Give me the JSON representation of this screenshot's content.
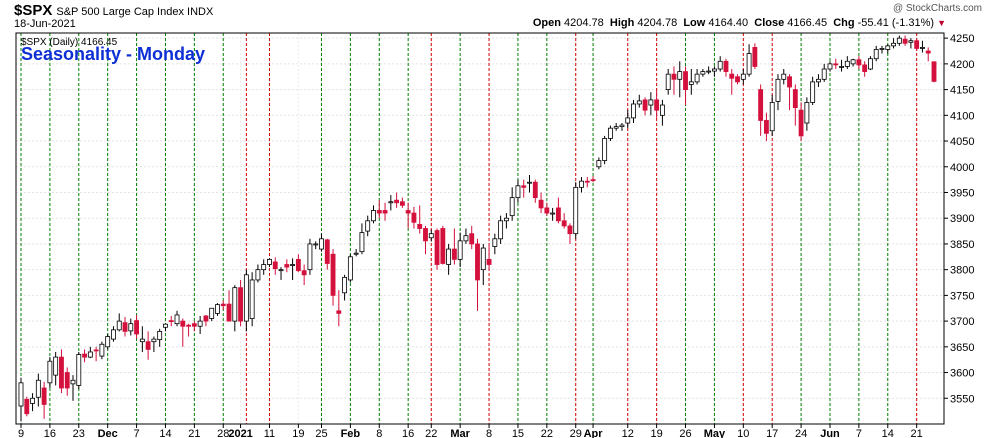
{
  "header": {
    "symbol": "$SPX",
    "name": "S&P 500 Large Cap Index",
    "exchange": "INDX",
    "date": "18-Jun-2021",
    "watermark": "@ StockCharts.com",
    "open_label": "Open",
    "open": "4204.78",
    "high_label": "High",
    "high": "4204.78",
    "low_label": "Low",
    "low": "4164.40",
    "close_label": "Close",
    "close": "4166.45",
    "chg_label": "Chg",
    "chg": "-55.41 (-1.31%)"
  },
  "chart_data": {
    "type": "candlestick",
    "title": "Seasonality - Monday",
    "series_label": "$SPX (Daily) 4166.45",
    "ylim": [
      3500,
      4260
    ],
    "y_ticks": [
      3550,
      3600,
      3650,
      3700,
      3750,
      3800,
      3850,
      3900,
      3950,
      4000,
      4050,
      4100,
      4150,
      4200,
      4250
    ],
    "x_ticks": [
      {
        "label": "9",
        "i": 0,
        "bold": false
      },
      {
        "label": "16",
        "i": 5,
        "bold": false
      },
      {
        "label": "23",
        "i": 10,
        "bold": false
      },
      {
        "label": "Dec",
        "i": 15,
        "bold": true
      },
      {
        "label": "7",
        "i": 20,
        "bold": false
      },
      {
        "label": "14",
        "i": 25,
        "bold": false
      },
      {
        "label": "21",
        "i": 30,
        "bold": false
      },
      {
        "label": "28",
        "i": 35,
        "bold": false
      },
      {
        "label": "2021",
        "i": 38,
        "bold": true
      },
      {
        "label": "11",
        "i": 43,
        "bold": false
      },
      {
        "label": "19",
        "i": 48,
        "bold": false
      },
      {
        "label": "25",
        "i": 52,
        "bold": false
      },
      {
        "label": "Feb",
        "i": 57,
        "bold": true
      },
      {
        "label": "8",
        "i": 62,
        "bold": false
      },
      {
        "label": "16",
        "i": 67,
        "bold": false
      },
      {
        "label": "22",
        "i": 71,
        "bold": false
      },
      {
        "label": "Mar",
        "i": 76,
        "bold": true
      },
      {
        "label": "8",
        "i": 81,
        "bold": false
      },
      {
        "label": "15",
        "i": 86,
        "bold": false
      },
      {
        "label": "22",
        "i": 91,
        "bold": false
      },
      {
        "label": "29",
        "i": 96,
        "bold": false
      },
      {
        "label": "Apr",
        "i": 99,
        "bold": true
      },
      {
        "label": "12",
        "i": 105,
        "bold": false
      },
      {
        "label": "19",
        "i": 110,
        "bold": false
      },
      {
        "label": "26",
        "i": 115,
        "bold": false
      },
      {
        "label": "May",
        "i": 120,
        "bold": true
      },
      {
        "label": "10",
        "i": 125,
        "bold": false
      },
      {
        "label": "17",
        "i": 130,
        "bold": false
      },
      {
        "label": "24",
        "i": 135,
        "bold": false
      },
      {
        "label": "Jun",
        "i": 140,
        "bold": true
      },
      {
        "label": "7",
        "i": 145,
        "bold": false
      },
      {
        "label": "14",
        "i": 150,
        "bold": false
      },
      {
        "label": "21",
        "i": 155,
        "bold": false
      }
    ],
    "monday_marker_colors": {
      "up": "#008000",
      "down": "#d40000"
    },
    "monday_markers": [
      {
        "i": 0,
        "dir": "up"
      },
      {
        "i": 5,
        "dir": "up"
      },
      {
        "i": 10,
        "dir": "up"
      },
      {
        "i": 15,
        "dir": "up"
      },
      {
        "i": 20,
        "dir": "up"
      },
      {
        "i": 25,
        "dir": "up"
      },
      {
        "i": 30,
        "dir": "up"
      },
      {
        "i": 35,
        "dir": "up"
      },
      {
        "i": 39,
        "dir": "down"
      },
      {
        "i": 43,
        "dir": "down"
      },
      {
        "i": 52,
        "dir": "up"
      },
      {
        "i": 57,
        "dir": "up"
      },
      {
        "i": 62,
        "dir": "up"
      },
      {
        "i": 67,
        "dir": "up"
      },
      {
        "i": 71,
        "dir": "down"
      },
      {
        "i": 76,
        "dir": "up"
      },
      {
        "i": 81,
        "dir": "down"
      },
      {
        "i": 86,
        "dir": "up"
      },
      {
        "i": 91,
        "dir": "up"
      },
      {
        "i": 96,
        "dir": "down"
      },
      {
        "i": 99,
        "dir": "up"
      },
      {
        "i": 105,
        "dir": "down"
      },
      {
        "i": 110,
        "dir": "down"
      },
      {
        "i": 115,
        "dir": "up"
      },
      {
        "i": 120,
        "dir": "up"
      },
      {
        "i": 125,
        "dir": "down"
      },
      {
        "i": 130,
        "dir": "down"
      },
      {
        "i": 135,
        "dir": "up"
      },
      {
        "i": 140,
        "dir": "up"
      },
      {
        "i": 145,
        "dir": "up"
      },
      {
        "i": 150,
        "dir": "up"
      },
      {
        "i": 155,
        "dir": "down"
      }
    ],
    "candle_colors": {
      "up_fill": "#ffffff",
      "up_stroke": "#000000",
      "down": "#d4103c",
      "bull_solid": "#000000"
    },
    "candles": [
      [
        3535,
        3590,
        3505,
        3580
      ],
      [
        3548,
        3553,
        3515,
        3520
      ],
      [
        3540,
        3560,
        3525,
        3550
      ],
      [
        3552,
        3598,
        3534,
        3585
      ],
      [
        3570,
        3582,
        3510,
        3538
      ],
      [
        3580,
        3630,
        3570,
        3622
      ],
      [
        3595,
        3640,
        3575,
        3630
      ],
      [
        3630,
        3645,
        3560,
        3570
      ],
      [
        3600,
        3610,
        3555,
        3570
      ],
      [
        3578,
        3595,
        3545,
        3585
      ],
      [
        3575,
        3640,
        3568,
        3635
      ],
      [
        3636,
        3645,
        3620,
        3630
      ],
      [
        3630,
        3650,
        3628,
        3640
      ],
      [
        3644,
        3650,
        3622,
        3642
      ],
      [
        3632,
        3660,
        3626,
        3655
      ],
      [
        3650,
        3675,
        3645,
        3670
      ],
      [
        3665,
        3690,
        3660,
        3683
      ],
      [
        3683,
        3715,
        3680,
        3700
      ],
      [
        3697,
        3708,
        3670,
        3680
      ],
      [
        3681,
        3705,
        3672,
        3695
      ],
      [
        3701,
        3712,
        3666,
        3675
      ],
      [
        3660,
        3690,
        3640,
        3665
      ],
      [
        3660,
        3680,
        3625,
        3645
      ],
      [
        3660,
        3670,
        3640,
        3665
      ],
      [
        3664,
        3685,
        3650,
        3680
      ],
      [
        3688,
        3695,
        3680,
        3694
      ],
      [
        3701,
        3710,
        3690,
        3700
      ],
      [
        3695,
        3720,
        3690,
        3712
      ],
      [
        3700,
        3705,
        3650,
        3690
      ],
      [
        3692,
        3695,
        3670,
        3690
      ],
      [
        3695,
        3700,
        3680,
        3690
      ],
      [
        3690,
        3710,
        3675,
        3700
      ],
      [
        3710,
        3712,
        3690,
        3700
      ],
      [
        3705,
        3720,
        3700,
        3725
      ],
      [
        3715,
        3735,
        3710,
        3732
      ],
      [
        3733,
        3740,
        3722,
        3730
      ],
      [
        3733,
        3760,
        3700,
        3700
      ],
      [
        3700,
        3770,
        3680,
        3765
      ],
      [
        3765,
        3780,
        3690,
        3700
      ],
      [
        3700,
        3800,
        3680,
        3790
      ],
      [
        3705,
        3795,
        3690,
        3780
      ],
      [
        3780,
        3810,
        3775,
        3800
      ],
      [
        3800,
        3820,
        3790,
        3810
      ],
      [
        3810,
        3822,
        3805,
        3820
      ],
      [
        3815,
        3824,
        3790,
        3802
      ],
      [
        3800,
        3805,
        3780,
        3800
      ],
      [
        3810,
        3820,
        3795,
        3805
      ],
      [
        3810,
        3822,
        3780,
        3810
      ],
      [
        3820,
        3830,
        3795,
        3798
      ],
      [
        3798,
        3810,
        3770,
        3790
      ],
      [
        3800,
        3860,
        3790,
        3850
      ],
      [
        3850,
        3855,
        3840,
        3850
      ],
      [
        3840,
        3870,
        3835,
        3860
      ],
      [
        3858,
        3860,
        3800,
        3812
      ],
      [
        3830,
        3840,
        3730,
        3750
      ],
      [
        3720,
        3760,
        3690,
        3715
      ],
      [
        3755,
        3790,
        3740,
        3785
      ],
      [
        3780,
        3830,
        3775,
        3825
      ],
      [
        3832,
        3840,
        3826,
        3832
      ],
      [
        3835,
        3890,
        3830,
        3872
      ],
      [
        3875,
        3905,
        3865,
        3895
      ],
      [
        3895,
        3925,
        3890,
        3915
      ],
      [
        3915,
        3935,
        3900,
        3910
      ],
      [
        3915,
        3930,
        3895,
        3910
      ],
      [
        3930,
        3945,
        3915,
        3932
      ],
      [
        3935,
        3950,
        3920,
        3930
      ],
      [
        3932,
        3940,
        3920,
        3925
      ],
      [
        3915,
        3930,
        3880,
        3910
      ],
      [
        3910,
        3922,
        3880,
        3892
      ],
      [
        3888,
        3925,
        3870,
        3880
      ],
      [
        3880,
        3885,
        3830,
        3856
      ],
      [
        3862,
        3878,
        3855,
        3870
      ],
      [
        3876,
        3880,
        3800,
        3810
      ],
      [
        3880,
        3885,
        3810,
        3812
      ],
      [
        3810,
        3850,
        3790,
        3840
      ],
      [
        3840,
        3880,
        3810,
        3820
      ],
      [
        3820,
        3872,
        3805,
        3856
      ],
      [
        3856,
        3880,
        3850,
        3866
      ],
      [
        3870,
        3885,
        3840,
        3850
      ],
      [
        3850,
        3860,
        3720,
        3780
      ],
      [
        3800,
        3850,
        3770,
        3842
      ],
      [
        3820,
        3852,
        3800,
        3810
      ],
      [
        3845,
        3870,
        3830,
        3860
      ],
      [
        3860,
        3905,
        3850,
        3895
      ],
      [
        3895,
        3910,
        3880,
        3900
      ],
      [
        3905,
        3960,
        3895,
        3940
      ],
      [
        3940,
        3975,
        3930,
        3963
      ],
      [
        3963,
        3975,
        3940,
        3960
      ],
      [
        3970,
        3984,
        3950,
        3970
      ],
      [
        3970,
        3975,
        3930,
        3940
      ],
      [
        3935,
        3950,
        3910,
        3920
      ],
      [
        3920,
        3930,
        3905,
        3910
      ],
      [
        3910,
        3920,
        3895,
        3910
      ],
      [
        3920,
        3940,
        3890,
        3895
      ],
      [
        3895,
        3910,
        3880,
        3885
      ],
      [
        3885,
        3890,
        3850,
        3870
      ],
      [
        3870,
        3970,
        3860,
        3960
      ],
      [
        3960,
        3980,
        3950,
        3972
      ],
      [
        3972,
        3980,
        3960,
        3970
      ],
      [
        3975,
        3982,
        3970,
        3974
      ],
      [
        4000,
        4018,
        3995,
        4012
      ],
      [
        4012,
        4060,
        4005,
        4055
      ],
      [
        4055,
        4080,
        4050,
        4075
      ],
      [
        4075,
        4085,
        4070,
        4078
      ],
      [
        4078,
        4085,
        4070,
        4081
      ],
      [
        4085,
        4110,
        4075,
        4095
      ],
      [
        4095,
        4130,
        4085,
        4122
      ],
      [
        4122,
        4140,
        4115,
        4128
      ],
      [
        4130,
        4135,
        4100,
        4110
      ],
      [
        4120,
        4145,
        4100,
        4130
      ],
      [
        4130,
        4150,
        4095,
        4110
      ],
      [
        4100,
        4130,
        4080,
        4120
      ],
      [
        4150,
        4190,
        4140,
        4180
      ],
      [
        4180,
        4195,
        4140,
        4170
      ],
      [
        4170,
        4205,
        4135,
        4185
      ],
      [
        4185,
        4195,
        4120,
        4150
      ],
      [
        4160,
        4190,
        4140,
        4165
      ],
      [
        4165,
        4190,
        4160,
        4180
      ],
      [
        4180,
        4190,
        4175,
        4185
      ],
      [
        4185,
        4195,
        4180,
        4186
      ],
      [
        4186,
        4195,
        4175,
        4190
      ],
      [
        4190,
        4215,
        4185,
        4205
      ],
      [
        4205,
        4210,
        4175,
        4185
      ],
      [
        4180,
        4190,
        4140,
        4172
      ],
      [
        4175,
        4180,
        4160,
        4165
      ],
      [
        4170,
        4190,
        4160,
        4180
      ],
      [
        4180,
        4238,
        4175,
        4220
      ],
      [
        4232,
        4240,
        4190,
        4195
      ],
      [
        4150,
        4160,
        4060,
        4090
      ],
      [
        4090,
        4105,
        4050,
        4065
      ],
      [
        4070,
        4140,
        4060,
        4125
      ],
      [
        4127,
        4180,
        4110,
        4170
      ],
      [
        4170,
        4190,
        4160,
        4180
      ],
      [
        4175,
        4180,
        4110,
        4155
      ],
      [
        4150,
        4160,
        4080,
        4115
      ],
      [
        4110,
        4125,
        4050,
        4060
      ],
      [
        4085,
        4135,
        4070,
        4125
      ],
      [
        4125,
        4175,
        4120,
        4165
      ],
      [
        4165,
        4180,
        4155,
        4170
      ],
      [
        4170,
        4200,
        4165,
        4190
      ],
      [
        4190,
        4205,
        4185,
        4200
      ],
      [
        4200,
        4210,
        4190,
        4198
      ],
      [
        4195,
        4208,
        4185,
        4195
      ],
      [
        4195,
        4215,
        4190,
        4205
      ],
      [
        4200,
        4210,
        4195,
        4208
      ],
      [
        4208,
        4215,
        4190,
        4198
      ],
      [
        4198,
        4205,
        4175,
        4185
      ],
      [
        4190,
        4215,
        4188,
        4210
      ],
      [
        4210,
        4235,
        4205,
        4228
      ],
      [
        4228,
        4235,
        4220,
        4230
      ],
      [
        4228,
        4238,
        4220,
        4235
      ],
      [
        4235,
        4250,
        4230,
        4240
      ],
      [
        4240,
        4255,
        4235,
        4250
      ],
      [
        4248,
        4255,
        4235,
        4240
      ],
      [
        4242,
        4250,
        4230,
        4245
      ],
      [
        4245,
        4250,
        4225,
        4230
      ],
      [
        4230,
        4245,
        4222,
        4232
      ],
      [
        4225,
        4232,
        4205,
        4221
      ],
      [
        4204,
        4205,
        4164,
        4166
      ]
    ]
  }
}
